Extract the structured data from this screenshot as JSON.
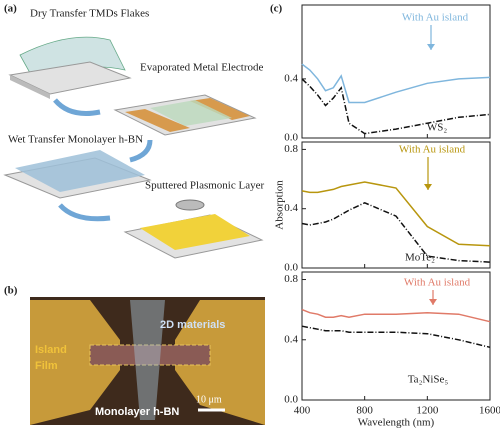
{
  "panels": {
    "a": {
      "label": "(a)",
      "steps": [
        "Dry Transfer TMDs Flakes",
        "Evaporated Metal Electrode",
        "Wet Transfer Monolayer h-BN",
        "Sputtered Plasmonic Layer"
      ]
    },
    "b": {
      "label": "(b)",
      "materials": "2D materials",
      "island": "Island",
      "film": "Film",
      "hbn": "Monolayer h-BN",
      "scale": "10 μm"
    },
    "c": {
      "label": "(c)",
      "ylabel": "Absorption",
      "xlabel": "Wavelength (nm)"
    }
  },
  "chart_data": [
    {
      "type": "line",
      "sample_label": "WS₂",
      "xlim": [
        400,
        1600
      ],
      "xticks": [
        400,
        800,
        1200,
        1600
      ],
      "ylim": [
        0,
        0.9
      ],
      "yticks": [
        {
          "value": 0,
          "label": "0.0"
        },
        0.4
      ],
      "x": [
        400,
        450,
        500,
        550,
        600,
        650,
        700,
        800,
        1000,
        1200,
        1400,
        1600
      ],
      "series": [
        {
          "name": "With Au island",
          "color": "#7fb6dd",
          "values": [
            0.5,
            0.46,
            0.4,
            0.32,
            0.34,
            0.42,
            0.24,
            0.24,
            0.31,
            0.37,
            0.4,
            0.41
          ]
        },
        {
          "color": "#111111",
          "values": [
            0.4,
            0.35,
            0.29,
            0.22,
            0.27,
            0.34,
            0.1,
            0.03,
            0.06,
            0.1,
            0.14,
            0.16
          ]
        }
      ]
    },
    {
      "type": "line",
      "sample_label": "MoTe₂",
      "xlim": [
        400,
        1600
      ],
      "xticks": [
        400,
        800,
        1200,
        1600
      ],
      "ylim": [
        0,
        0.85
      ],
      "yticks": [
        {
          "value": 0,
          "label": "0.0"
        },
        0.4,
        0.8
      ],
      "x": [
        400,
        450,
        500,
        550,
        600,
        650,
        700,
        800,
        1000,
        1200,
        1400,
        1600
      ],
      "series": [
        {
          "name": "With Au island",
          "color": "#b8960e",
          "values": [
            0.52,
            0.51,
            0.51,
            0.52,
            0.53,
            0.55,
            0.56,
            0.58,
            0.54,
            0.28,
            0.16,
            0.15
          ]
        },
        {
          "color": "#111111",
          "values": [
            0.3,
            0.29,
            0.3,
            0.31,
            0.33,
            0.36,
            0.39,
            0.44,
            0.35,
            0.08,
            0.05,
            0.04
          ]
        }
      ]
    },
    {
      "type": "line",
      "sample_label": "Ta₂NiSe₅",
      "xlim": [
        400,
        1600
      ],
      "xticks": [
        400,
        800,
        1200,
        1600
      ],
      "ylim": [
        0,
        0.85
      ],
      "yticks": [
        {
          "value": 0,
          "label": "0.0"
        },
        0.4,
        0.8
      ],
      "x": [
        400,
        450,
        500,
        550,
        600,
        650,
        700,
        800,
        1000,
        1200,
        1400,
        1600
      ],
      "series": [
        {
          "name": "With Au island",
          "color": "#e07a68",
          "values": [
            0.6,
            0.58,
            0.57,
            0.55,
            0.55,
            0.56,
            0.55,
            0.57,
            0.57,
            0.58,
            0.57,
            0.52
          ]
        },
        {
          "color": "#111111",
          "values": [
            0.49,
            0.48,
            0.47,
            0.46,
            0.46,
            0.46,
            0.45,
            0.45,
            0.45,
            0.44,
            0.4,
            0.35
          ]
        }
      ]
    }
  ]
}
